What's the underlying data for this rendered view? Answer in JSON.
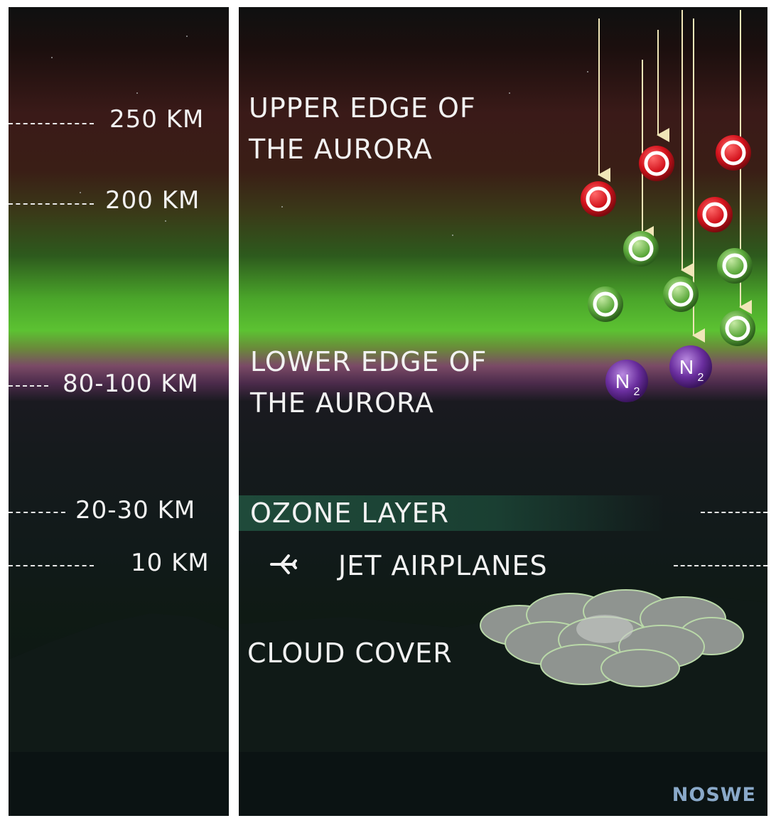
{
  "altitudes": [
    {
      "text": "250 KM"
    },
    {
      "text": "200 KM"
    },
    {
      "text": "80-100 KM"
    },
    {
      "text": "20-30 KM"
    },
    {
      "text": "10 KM"
    }
  ],
  "labels": {
    "upper_line1": "UPPER EDGE OF",
    "upper_line2": "THE AURORA",
    "lower_line1": "LOWER EDGE OF",
    "lower_line2": "THE AURORA",
    "ozone": "OZONE LAYER",
    "jet": "JET AIRPLANES",
    "cloud": "CLOUD COVER"
  },
  "particles": {
    "oxygen_red": "O",
    "oxygen_green": "O",
    "nitrogen": "N",
    "nitrogen_subscript": "2"
  },
  "brand": "NOSWE",
  "colors": {
    "red_oxygen": "#d3121c",
    "green_oxygen": "#5aa83a",
    "nitrogen": "#6a2e9e",
    "arrow": "#f0e6b8",
    "brand": "#8aa9c9"
  }
}
